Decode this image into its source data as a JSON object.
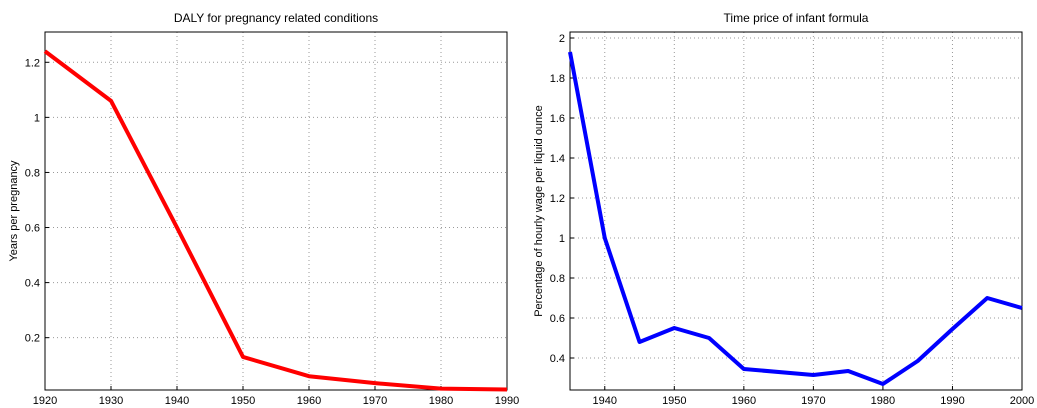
{
  "chart_data": [
    {
      "type": "line",
      "title": "DALY for pregnancy related conditions",
      "y_label": "Years per pregnancy",
      "x": [
        1920,
        1930,
        1940,
        1950,
        1960,
        1970,
        1980,
        1990
      ],
      "series": [
        {
          "color": "#ff0000",
          "values": [
            1.24,
            1.06,
            0.6,
            0.13,
            0.06,
            0.035,
            0.015,
            0.012
          ]
        }
      ],
      "xlim": [
        1920,
        1990
      ],
      "xticks": [
        1920,
        1930,
        1940,
        1950,
        1960,
        1970,
        1980,
        1990
      ],
      "ylim": [
        0.01,
        1.31
      ],
      "yticks": [
        0.2,
        0.4,
        0.6,
        0.8,
        1,
        1.2
      ],
      "grid": true
    },
    {
      "type": "line",
      "title": "Time price of infant formula",
      "y_label": "Percentage of hourly wage per liquid ounce",
      "x": [
        1935,
        1940,
        1945,
        1950,
        1955,
        1960,
        1970,
        1975,
        1980,
        1985,
        1990,
        1995,
        2000
      ],
      "series": [
        {
          "color": "#0000ff",
          "values": [
            1.93,
            1.0,
            0.48,
            0.55,
            0.5,
            0.345,
            0.315,
            0.335,
            0.27,
            0.385,
            0.545,
            0.7,
            0.65
          ]
        }
      ],
      "xlim": [
        1935,
        2000
      ],
      "xticks": [
        1940,
        1950,
        1960,
        1970,
        1980,
        1990,
        2000
      ],
      "ylim": [
        0.24,
        2.03
      ],
      "yticks": [
        0.4,
        0.6,
        0.8,
        1,
        1.2,
        1.4,
        1.6,
        1.8,
        2
      ],
      "grid": true
    }
  ]
}
